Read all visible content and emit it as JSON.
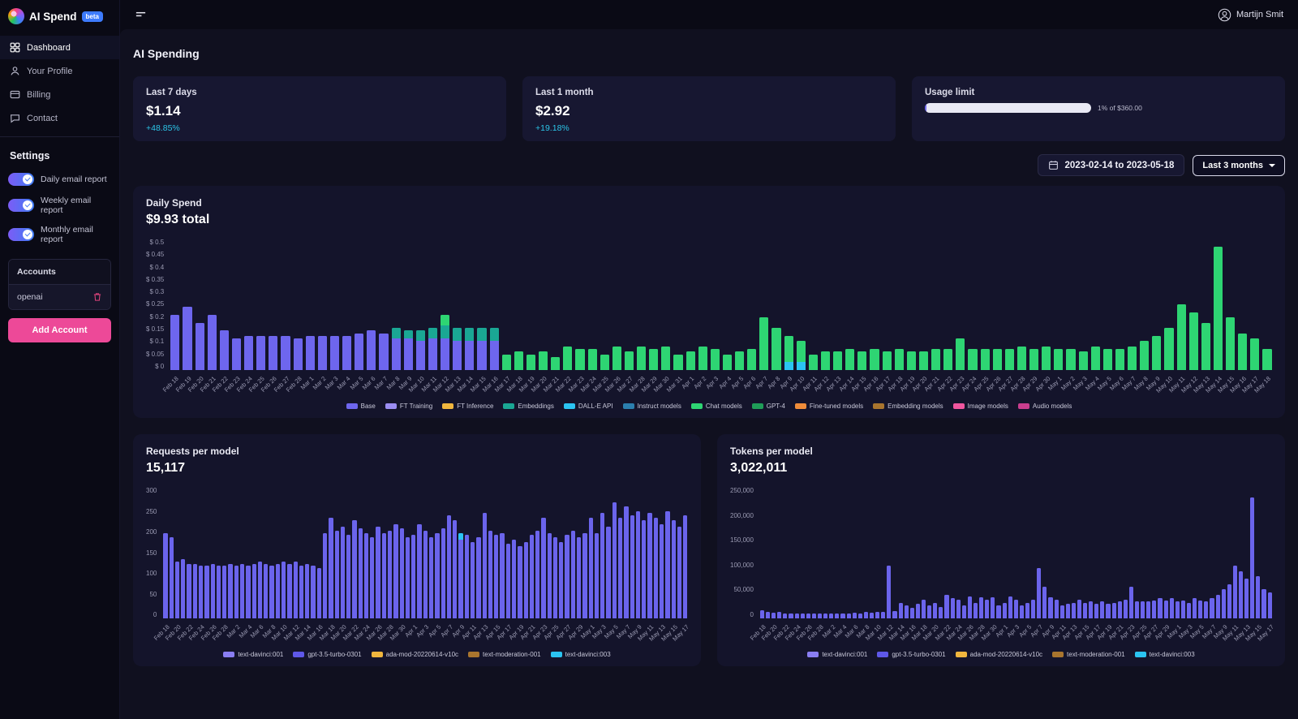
{
  "app": {
    "name": "AI Spend",
    "badge": "beta"
  },
  "topbar": {
    "user": "Martijn Smit"
  },
  "sidebar": {
    "nav": [
      {
        "label": "Dashboard",
        "icon": "dashboard-icon",
        "active": true
      },
      {
        "label": "Your Profile",
        "icon": "profile-icon",
        "active": false
      },
      {
        "label": "Billing",
        "icon": "billing-icon",
        "active": false
      },
      {
        "label": "Contact",
        "icon": "contact-icon",
        "active": false
      }
    ],
    "settings_header": "Settings",
    "toggles": [
      {
        "label": "Daily email report",
        "on": true
      },
      {
        "label": "Weekly email report",
        "on": true
      },
      {
        "label": "Monthly email report",
        "on": true
      }
    ],
    "accounts": {
      "header": "Accounts",
      "items": [
        "openai"
      ],
      "add_label": "Add Account"
    }
  },
  "page": {
    "title": "AI Spending"
  },
  "stats": [
    {
      "label": "Last 7 days",
      "value": "$1.14",
      "delta": "+48.85%"
    },
    {
      "label": "Last 1 month",
      "value": "$2.92",
      "delta": "+19.18%"
    },
    {
      "label": "Usage limit",
      "percent": 1,
      "caption": "1% of $360.00"
    }
  ],
  "daterange": {
    "range": "2023-02-14 to 2023-05-18",
    "preset": "Last 3 months"
  },
  "dates": [
    "Feb 18",
    "Feb 19",
    "Feb 20",
    "Feb 21",
    "Feb 22",
    "Feb 23",
    "Feb 24",
    "Feb 25",
    "Feb 26",
    "Feb 27",
    "Feb 28",
    "Mar 1",
    "Mar 2",
    "Mar 3",
    "Mar 4",
    "Mar 5",
    "Mar 6",
    "Mar 7",
    "Mar 8",
    "Mar 9",
    "Mar 10",
    "Mar 11",
    "Mar 12",
    "Mar 13",
    "Mar 14",
    "Mar 15",
    "Mar 16",
    "Mar 17",
    "Mar 18",
    "Mar 19",
    "Mar 20",
    "Mar 21",
    "Mar 22",
    "Mar 23",
    "Mar 24",
    "Mar 25",
    "Mar 26",
    "Mar 27",
    "Mar 28",
    "Mar 29",
    "Mar 30",
    "Mar 31",
    "Apr 1",
    "Apr 2",
    "Apr 3",
    "Apr 4",
    "Apr 5",
    "Apr 6",
    "Apr 7",
    "Apr 8",
    "Apr 9",
    "Apr 10",
    "Apr 11",
    "Apr 12",
    "Apr 13",
    "Apr 14",
    "Apr 15",
    "Apr 16",
    "Apr 17",
    "Apr 18",
    "Apr 19",
    "Apr 20",
    "Apr 21",
    "Apr 22",
    "Apr 23",
    "Apr 24",
    "Apr 25",
    "Apr 26",
    "Apr 27",
    "Apr 28",
    "Apr 29",
    "Apr 30",
    "May 1",
    "May 2",
    "May 3",
    "May 4",
    "May 5",
    "May 6",
    "May 7",
    "May 8",
    "May 9",
    "May 10",
    "May 11",
    "May 12",
    "May 13",
    "May 14",
    "May 15",
    "May 16",
    "May 17",
    "May 18"
  ],
  "chart_data": [
    {
      "id": "daily_spend",
      "type": "bar",
      "stacked": true,
      "title": "Daily Spend",
      "subtitle": "$9.93 total",
      "ylim": [
        0,
        0.5
      ],
      "yticks": [
        "$ 0.5",
        "$ 0.45",
        "$ 0.4",
        "$ 0.35",
        "$ 0.3",
        "$ 0.25",
        "$ 0.2",
        "$ 0.15",
        "$ 0.1",
        "$ 0.05",
        "$ 0"
      ],
      "categories_ref": "dates",
      "num_categories": 90,
      "label_every": 1,
      "series": [
        {
          "name": "Base",
          "color": "#6e66ee",
          "values": [
            0.21,
            0.24,
            0.18,
            0.21,
            0.15,
            0.12,
            0.13,
            0.13,
            0.13,
            0.13,
            0.12,
            0.13,
            0.13,
            0.13,
            0.13,
            0.14,
            0.15,
            0.14,
            0.12,
            0.12,
            0.11,
            0.12,
            0.12,
            0.11,
            0.11,
            0.11,
            0.11
          ]
        },
        {
          "name": "Embeddings",
          "color": "#1aa794",
          "sparse": {
            "18": 0.04,
            "19": 0.03,
            "20": 0.04,
            "21": 0.04,
            "22": 0.05,
            "23": 0.05,
            "24": 0.05,
            "25": 0.05,
            "26": 0.05
          }
        },
        {
          "name": "DALL-E API",
          "color": "#2bc4f2",
          "sparse": {
            "50": 0.03,
            "51": 0.03
          }
        },
        {
          "name": "Chat models",
          "color": "#2ed573",
          "values": [
            0,
            0,
            0,
            0,
            0,
            0,
            0,
            0,
            0,
            0,
            0,
            0,
            0,
            0,
            0,
            0,
            0,
            0,
            0,
            0,
            0,
            0,
            0.04,
            0,
            0,
            0,
            0,
            0.06,
            0.07,
            0.06,
            0.07,
            0.05,
            0.09,
            0.08,
            0.08,
            0.06,
            0.09,
            0.07,
            0.09,
            0.08,
            0.09,
            0.06,
            0.07,
            0.09,
            0.08,
            0.06,
            0.07,
            0.08,
            0.2,
            0.16,
            0.1,
            0.08,
            0.06,
            0.07,
            0.07,
            0.08,
            0.07,
            0.08,
            0.07,
            0.08,
            0.07,
            0.07,
            0.08,
            0.08,
            0.12,
            0.08,
            0.08,
            0.08,
            0.08,
            0.09,
            0.08,
            0.09,
            0.08,
            0.08,
            0.07,
            0.09,
            0.08,
            0.08,
            0.09,
            0.11,
            0.13,
            0.16,
            0.25,
            0.22,
            0.18,
            0.47,
            0.2,
            0.14,
            0.12,
            0.08
          ]
        }
      ],
      "legend": [
        {
          "label": "Base",
          "color": "#6e66ee"
        },
        {
          "label": "FT Training",
          "color": "#9b8df2"
        },
        {
          "label": "FT Inference",
          "color": "#f0b63e"
        },
        {
          "label": "Embeddings",
          "color": "#1aa794"
        },
        {
          "label": "DALL-E API",
          "color": "#2bc4f2"
        },
        {
          "label": "Instruct models",
          "color": "#2b7fae"
        },
        {
          "label": "Chat models",
          "color": "#2ed573"
        },
        {
          "label": "GPT-4",
          "color": "#1f9d58"
        },
        {
          "label": "Fine-tuned models",
          "color": "#ef8c3a"
        },
        {
          "label": "Embedding models",
          "color": "#a9752e"
        },
        {
          "label": "Image models",
          "color": "#f0569f"
        },
        {
          "label": "Audio models",
          "color": "#c93d8e"
        }
      ]
    },
    {
      "id": "requests",
      "type": "bar",
      "stacked": true,
      "title": "Requests per model",
      "subtitle": "15,117",
      "ylim": [
        0,
        300
      ],
      "yticks": [
        "300",
        "250",
        "200",
        "150",
        "100",
        "50",
        "0"
      ],
      "categories_ref": "dates",
      "num_categories": 89,
      "label_every": 2,
      "series": [
        {
          "name": "gpt-3.5-turbo-0301",
          "color": "#6b64ec",
          "values": [
            195,
            185,
            130,
            135,
            125,
            125,
            120,
            120,
            125,
            120,
            120,
            125,
            120,
            125,
            120,
            125,
            130,
            125,
            120,
            125,
            130,
            125,
            130,
            120,
            125,
            120,
            115,
            195,
            230,
            200,
            210,
            190,
            225,
            205,
            195,
            185,
            210,
            195,
            200,
            215,
            205,
            185,
            190,
            215,
            200,
            185,
            195,
            205,
            235,
            225,
            180,
            190,
            175,
            185,
            240,
            200,
            190,
            195,
            170,
            180,
            165,
            175,
            190,
            200,
            230,
            195,
            185,
            175,
            190,
            200,
            185,
            195,
            230,
            195,
            240,
            210,
            265,
            230,
            255,
            235,
            245,
            225,
            240,
            230,
            215,
            245,
            225,
            210,
            235
          ]
        },
        {
          "name": "text-davinci:003",
          "color": "#2bc4f2",
          "sparse": {
            "50": 15
          }
        }
      ],
      "legend": [
        {
          "label": "text-davinci:001",
          "color": "#8a7ef2"
        },
        {
          "label": "gpt-3.5-turbo-0301",
          "color": "#5f58e8"
        },
        {
          "label": "ada-mod-20220614-v10c",
          "color": "#f0b63e"
        },
        {
          "label": "text-moderation-001",
          "color": "#a9752e"
        },
        {
          "label": "text-davinci:003",
          "color": "#2bc4f2"
        }
      ]
    },
    {
      "id": "tokens",
      "type": "bar",
      "stacked": true,
      "title": "Tokens per model",
      "subtitle": "3,022,011",
      "ylim": [
        0,
        250000
      ],
      "yticks": [
        "250,000",
        "200,000",
        "150,000",
        "100,000",
        "50,000",
        "0"
      ],
      "categories_ref": "dates",
      "num_categories": 89,
      "label_every": 2,
      "series": [
        {
          "name": "gpt-3.5-turbo-0301",
          "color": "#6b64ec",
          "values": [
            15000,
            13000,
            11000,
            12000,
            10000,
            9000,
            9500,
            9000,
            9500,
            9000,
            9000,
            9500,
            9000,
            9500,
            9000,
            10000,
            11000,
            10000,
            12000,
            11000,
            12000,
            13000,
            100000,
            14000,
            30000,
            25000,
            20000,
            28000,
            35000,
            25000,
            30000,
            22000,
            45000,
            38000,
            35000,
            25000,
            42000,
            30000,
            40000,
            35000,
            40000,
            25000,
            30000,
            42000,
            35000,
            25000,
            30000,
            35000,
            95000,
            60000,
            40000,
            35000,
            25000,
            28000,
            30000,
            35000,
            30000,
            33000,
            28000,
            32000,
            28000,
            30000,
            33000,
            35000,
            60000,
            33000,
            32000,
            33000,
            34000,
            38000,
            34000,
            38000,
            33000,
            34000,
            30000,
            38000,
            34000,
            33000,
            38000,
            45000,
            55000,
            65000,
            100000,
            90000,
            75000,
            230000,
            80000,
            55000,
            50000
          ]
        }
      ],
      "legend": [
        {
          "label": "text-davinci:001",
          "color": "#8a7ef2"
        },
        {
          "label": "gpt-3.5-turbo-0301",
          "color": "#5f58e8"
        },
        {
          "label": "ada-mod-20220614-v10c",
          "color": "#f0b63e"
        },
        {
          "label": "text-moderation-001",
          "color": "#a9752e"
        },
        {
          "label": "text-davinci:003",
          "color": "#2bc4f2"
        }
      ]
    }
  ]
}
